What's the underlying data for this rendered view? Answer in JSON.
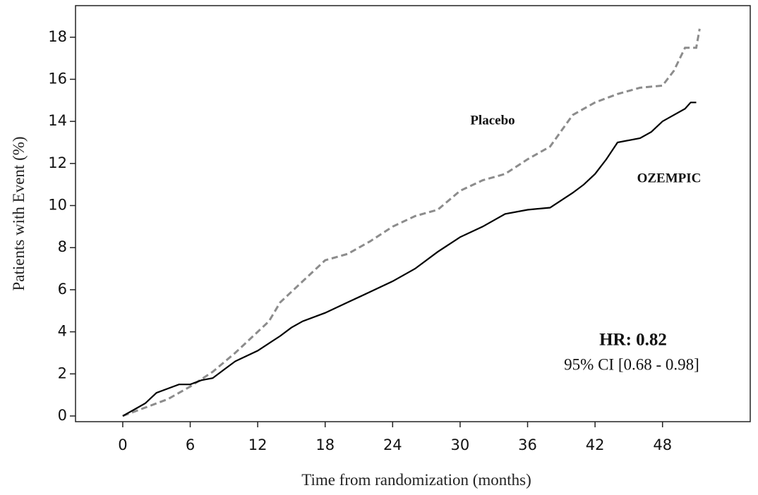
{
  "chart_data": {
    "type": "line",
    "x_label": "Time from randomization (months)",
    "y_label": "Patients with Event (%)",
    "xlim": [
      -4.2,
      55.8
    ],
    "ylim": [
      -0.27,
      19.5
    ],
    "xticks": [
      0,
      6,
      12,
      18,
      24,
      30,
      36,
      42,
      48
    ],
    "yticks": [
      0,
      2,
      4,
      6,
      8,
      10,
      12,
      14,
      16,
      18
    ],
    "series": [
      {
        "name": "Placebo",
        "color": "#8c8c8c",
        "dashed": true,
        "x": [
          0,
          2,
          4,
          6,
          8,
          10,
          12,
          13,
          14,
          16,
          18,
          20,
          22,
          24,
          26,
          28,
          30,
          32,
          34,
          36,
          38,
          40,
          42,
          44,
          46,
          48,
          49,
          50,
          51,
          51.3
        ],
        "values": [
          0,
          0.4,
          0.8,
          1.4,
          2.1,
          3.0,
          4.0,
          4.5,
          5.4,
          6.4,
          7.4,
          7.7,
          8.3,
          9.0,
          9.5,
          9.8,
          10.7,
          11.2,
          11.5,
          12.2,
          12.8,
          14.3,
          14.9,
          15.3,
          15.6,
          15.7,
          16.4,
          17.5,
          17.5,
          18.4
        ]
      },
      {
        "name": "OZEMPIC",
        "color": "#000000",
        "dashed": false,
        "x": [
          0,
          1,
          2,
          3,
          4,
          5,
          6,
          7,
          8,
          9,
          10,
          12,
          14,
          15,
          16,
          18,
          20,
          22,
          24,
          26,
          28,
          30,
          32,
          34,
          36,
          38,
          40,
          41,
          42,
          43,
          44,
          46,
          47,
          48,
          50,
          50.5,
          51
        ],
        "values": [
          0,
          0.3,
          0.6,
          1.1,
          1.3,
          1.5,
          1.5,
          1.7,
          1.8,
          2.2,
          2.6,
          3.1,
          3.8,
          4.2,
          4.5,
          4.9,
          5.4,
          5.9,
          6.4,
          7.0,
          7.8,
          8.5,
          9.0,
          9.6,
          9.8,
          9.9,
          10.6,
          11.0,
          11.5,
          12.2,
          13.0,
          13.2,
          13.5,
          14.0,
          14.6,
          14.9,
          14.9
        ]
      }
    ],
    "annotations": [
      "HR: 0.82",
      "95% CI [0.68 - 0.98]"
    ]
  }
}
